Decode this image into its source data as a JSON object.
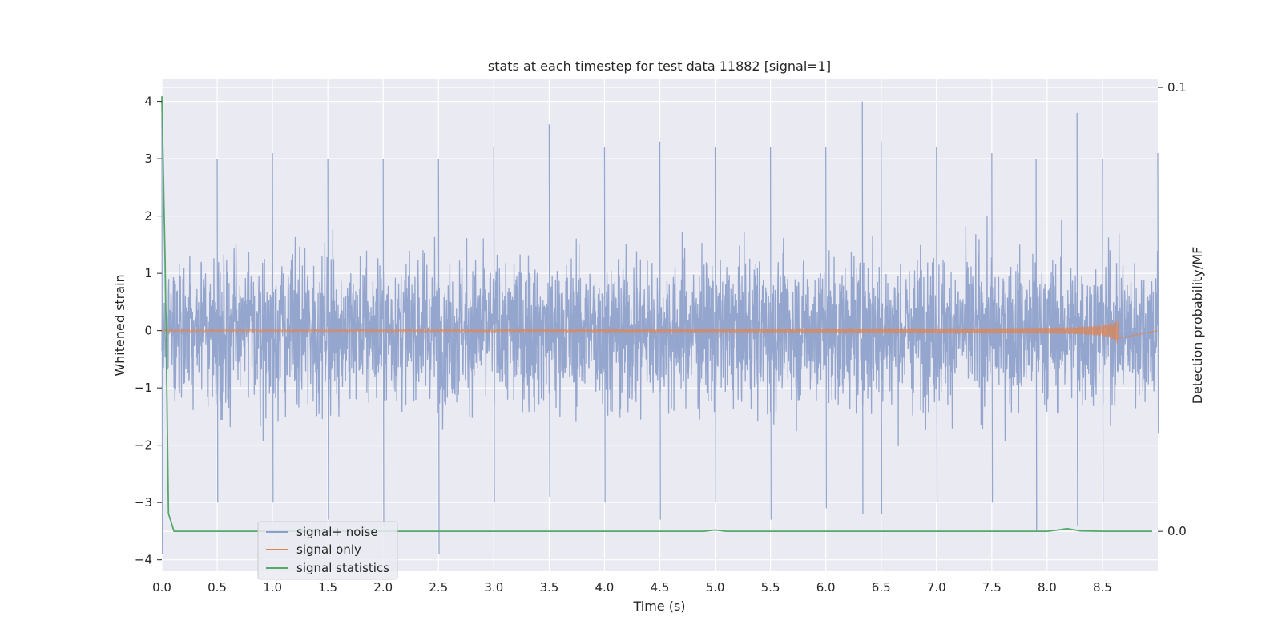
{
  "chart_data": {
    "type": "line",
    "title": "stats at each timestep for test data 11882 [signal=1]",
    "xlabel": "Time (s)",
    "ylabel": "Whitened strain",
    "y2label": "Detection probability/MF",
    "xlim": [
      0.0,
      9.0
    ],
    "ylim": [
      -4.2,
      4.4
    ],
    "y2lim": [
      -0.009,
      0.102
    ],
    "xticks": [
      "0.0",
      "0.5",
      "1.0",
      "1.5",
      "2.0",
      "2.5",
      "3.0",
      "3.5",
      "4.0",
      "4.5",
      "5.0",
      "5.5",
      "6.0",
      "6.5",
      "7.0",
      "7.5",
      "8.0",
      "8.5"
    ],
    "yticks": [
      "4",
      "3",
      "2",
      "1",
      "0",
      "−1",
      "−2",
      "−3",
      "−4"
    ],
    "y2ticks": [
      "0.1",
      "0.0"
    ],
    "grid": true,
    "legend_position": "lower-left",
    "series": [
      {
        "name": "signal+ noise",
        "axis": "left",
        "color": "#8c9fca",
        "description_values": {
          "typical_range": [
            -2.0,
            2.5
          ],
          "peak": 4.0,
          "peak_time": 6.33,
          "min": -3.9,
          "min_time": 2.52
        },
        "envelope_points": [
          [
            0.0,
            4.0,
            -3.9
          ],
          [
            0.5,
            3.0,
            -3.0
          ],
          [
            1.0,
            3.1,
            -3.0
          ],
          [
            1.5,
            3.0,
            -3.3
          ],
          [
            2.0,
            3.0,
            -3.4
          ],
          [
            2.5,
            3.0,
            -3.9
          ],
          [
            3.0,
            3.2,
            -3.0
          ],
          [
            3.5,
            3.6,
            -2.9
          ],
          [
            4.0,
            3.2,
            -3.0
          ],
          [
            4.5,
            3.3,
            -3.3
          ],
          [
            5.0,
            3.2,
            -3.0
          ],
          [
            5.5,
            3.2,
            -3.3
          ],
          [
            6.0,
            3.2,
            -3.1
          ],
          [
            6.33,
            4.0,
            -3.2
          ],
          [
            6.5,
            3.3,
            -3.2
          ],
          [
            7.0,
            3.2,
            -3.0
          ],
          [
            7.5,
            3.1,
            -3.0
          ],
          [
            7.9,
            3.0,
            -3.5
          ],
          [
            8.27,
            3.8,
            -3.4
          ],
          [
            8.5,
            3.0,
            -3.0
          ],
          [
            9.0,
            3.1,
            -1.8
          ]
        ]
      },
      {
        "name": "signal only",
        "axis": "left",
        "color": "#dd8452",
        "chirp": {
          "start": 0.0,
          "end": 8.65,
          "final_amplitude": 0.3
        }
      },
      {
        "name": "signal statistics",
        "axis": "right",
        "color": "#55a868",
        "x": [
          0.0,
          0.03,
          0.06,
          0.11,
          1.0,
          2.0,
          3.0,
          4.0,
          4.9,
          5.0,
          5.1,
          6.0,
          7.0,
          8.0,
          8.1,
          8.18,
          8.3,
          8.5,
          8.95
        ],
        "values": [
          0.098,
          0.06,
          0.004,
          0.0,
          0.0,
          0.0,
          0.0,
          0.0,
          0.0,
          0.0003,
          0.0,
          0.0,
          0.0,
          0.0,
          0.0003,
          0.0006,
          0.0001,
          0.0,
          0.0
        ]
      }
    ]
  }
}
